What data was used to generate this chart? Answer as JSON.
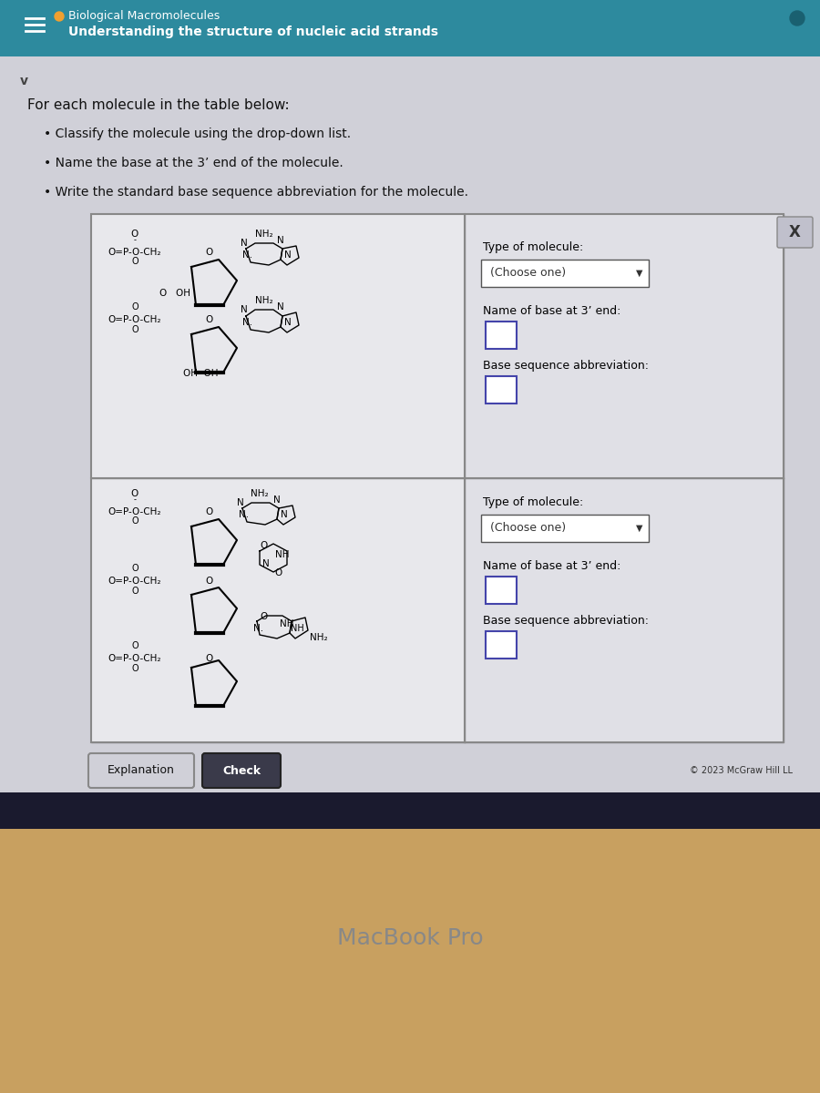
{
  "bg_color": "#d0d0d8",
  "header_color": "#2d8a9e",
  "header_text1": "Biological Macromolecules",
  "header_text2": "Understanding the structure of nucleic acid strands",
  "instruction_title": "For each molecule in the table below:",
  "instructions": [
    "Classify the molecule using the drop-down list.",
    "Name the base at the 3’ end of the molecule.",
    "Write the standard base sequence abbreviation for the molecule."
  ],
  "table_bg": "#e8e8ee",
  "cell_bg": "#e0e0e8",
  "right_bg": "#d8d8e0",
  "row1_mol_lines": [
    "O=P-O-CH₂ O",
    "NH₂",
    "N",
    "N.",
    "N",
    "N.",
    "O OH",
    "O=P-O-CH₂ O",
    "OH OH"
  ],
  "row2_mol_lines": [
    "O=P-O-CH₂ O",
    "NH₂",
    "N",
    "N.",
    "N",
    "N.",
    "O",
    "NH",
    "N",
    "O",
    "O=P-O-CH₂ O",
    "O",
    "N.",
    "NH",
    "N",
    "NH₂",
    "O=P-O-CH₂ O"
  ],
  "type_label": "Type of molecule:",
  "choose_one": "(Choose one)",
  "name_label": "Name of base at 3’ end:",
  "base_label": "Base sequence abbreviation:",
  "explanation_btn": "Explanation",
  "check_btn": "Check",
  "copyright": "© 2023 McGraw Hill LL",
  "macbook_text": "MacBook Pro",
  "footer_bg": "#1a1a2e",
  "wood_bg": "#c8a060"
}
